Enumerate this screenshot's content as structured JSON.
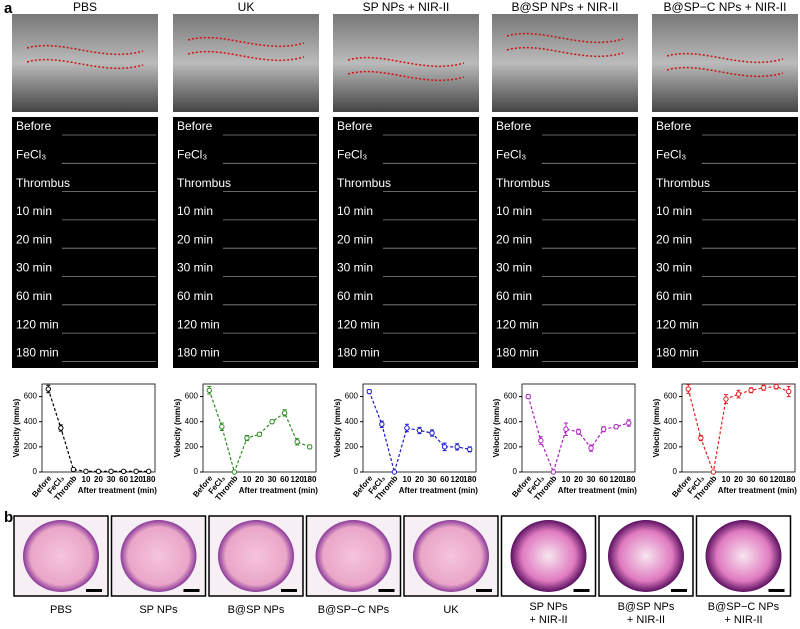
{
  "panel_a": {
    "label": "a",
    "columns": [
      "PBS",
      "UK",
      "SP NPs + NIR-II",
      "B@SP NPs + NIR-II",
      "B@SP−C NPs + NIR-II"
    ],
    "doppler_labels": [
      "Before",
      "FeCl₃",
      "Thrombus",
      "10 min",
      "20 min",
      "30 min",
      "60 min",
      "120 min",
      "180 min"
    ]
  },
  "chart_data": [
    {
      "type": "line",
      "color": "#000000",
      "categories": [
        "Before",
        "FeCl₃",
        "Thromb",
        "10",
        "20",
        "30",
        "60",
        "120",
        "180"
      ],
      "values": [
        660,
        350,
        20,
        5,
        5,
        5,
        5,
        5,
        5
      ],
      "errors": [
        30,
        25,
        10,
        5,
        5,
        5,
        5,
        5,
        5
      ],
      "ylim": [
        0,
        700
      ],
      "yticks": [
        0,
        200,
        400,
        600
      ],
      "y_label": "Velocity (mm/s)",
      "x_label": "After treatment (min)"
    },
    {
      "type": "line",
      "color": "#2e8b22",
      "categories": [
        "Before",
        "FeCl₃",
        "Thromb",
        "10",
        "20",
        "30",
        "60",
        "120",
        "180"
      ],
      "values": [
        650,
        360,
        0,
        270,
        300,
        400,
        470,
        240,
        200
      ],
      "errors": [
        30,
        30,
        5,
        20,
        15,
        15,
        25,
        25,
        15
      ],
      "ylim": [
        0,
        700
      ],
      "yticks": [
        0,
        200,
        400,
        600
      ],
      "y_label": "Velocity (mm/s)",
      "x_label": "After treatment (min)"
    },
    {
      "type": "line",
      "color": "#1a1acc",
      "categories": [
        "Before",
        "FeCl₃",
        "Thromb",
        "10",
        "20",
        "30",
        "60",
        "120",
        "180"
      ],
      "values": [
        640,
        380,
        0,
        350,
        330,
        310,
        200,
        200,
        180
      ],
      "errors": [
        15,
        25,
        5,
        30,
        25,
        25,
        30,
        25,
        20
      ],
      "ylim": [
        0,
        700
      ],
      "yticks": [
        0,
        200,
        400,
        600
      ],
      "y_label": "Velocity (mm/s)",
      "x_label": "After treatment (min)"
    },
    {
      "type": "line",
      "color": "#b020c0",
      "categories": [
        "Before",
        "FeCl₃",
        "Thromb",
        "10",
        "20",
        "30",
        "60",
        "120",
        "180"
      ],
      "values": [
        600,
        250,
        0,
        340,
        320,
        190,
        340,
        360,
        390
      ],
      "errors": [
        15,
        30,
        5,
        50,
        20,
        25,
        20,
        15,
        25
      ],
      "ylim": [
        0,
        700
      ],
      "yticks": [
        0,
        200,
        400,
        600
      ],
      "y_label": "Velocity (mm/s)",
      "x_label": "After treatment (min)"
    },
    {
      "type": "line",
      "color": "#e02020",
      "categories": [
        "Before",
        "FeCl₃",
        "Thromb",
        "10",
        "20",
        "30",
        "60",
        "120",
        "180"
      ],
      "values": [
        660,
        270,
        0,
        580,
        620,
        650,
        670,
        680,
        640
      ],
      "errors": [
        35,
        20,
        5,
        35,
        30,
        20,
        20,
        20,
        40
      ],
      "ylim": [
        0,
        700
      ],
      "yticks": [
        0,
        200,
        400,
        600
      ],
      "y_label": "Velocity (mm/s)",
      "x_label": "After treatment (min)"
    }
  ],
  "panel_b": {
    "label": "b",
    "images": [
      [
        "PBS"
      ],
      [
        "SP NPs"
      ],
      [
        "B@SP NPs"
      ],
      [
        "B@SP−C NPs"
      ],
      [
        "UK"
      ],
      [
        "SP NPs",
        "+ NIR-II"
      ],
      [
        "B@SP NPs",
        "+ NIR-II"
      ],
      [
        "B@SP−C NPs",
        "+ NIR-II"
      ]
    ]
  }
}
